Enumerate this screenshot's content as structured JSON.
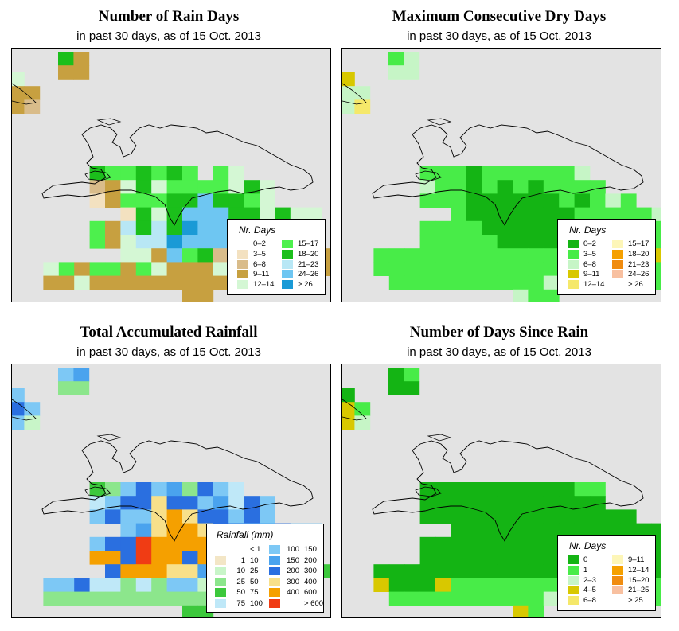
{
  "panels": [
    {
      "title": "Number of Rain Days",
      "subtitle": "in past 30 days, as of  15 Oct. 2013",
      "legend": {
        "title": "Nr. Days",
        "items": [
          {
            "label": "0–2",
            "color": "#ffffff"
          },
          {
            "label": "3–5",
            "color": "#f3e1c0"
          },
          {
            "label": "6–8",
            "color": "#d9bc8a"
          },
          {
            "label": "9–11",
            "color": "#c7a040"
          },
          {
            "label": "12–14",
            "color": "#d4f7d4"
          },
          {
            "label": "15–17",
            "color": "#4df04d"
          },
          {
            "label": "18–20",
            "color": "#1bbf1b"
          },
          {
            "label": "21–23",
            "color": "#b8e7f5"
          },
          {
            "label": "24–26",
            "color": "#6ec6f2"
          },
          {
            "label": "> 26",
            "color": "#1a9ad6"
          }
        ]
      }
    },
    {
      "title": "Maximum Consecutive Dry Days",
      "subtitle": "in past 30 days, as of  15 Oct. 2013",
      "legend": {
        "title": "Nr. Days",
        "items": [
          {
            "label": "0–2",
            "color": "#14b414"
          },
          {
            "label": "3–5",
            "color": "#48ec48"
          },
          {
            "label": "6–8",
            "color": "#c6f5c6"
          },
          {
            "label": "9–11",
            "color": "#d8c800"
          },
          {
            "label": "12–14",
            "color": "#f5e86a"
          },
          {
            "label": "15–17",
            "color": "#fdf6b8"
          },
          {
            "label": "18–20",
            "color": "#f5a000"
          },
          {
            "label": "21–23",
            "color": "#f08c10"
          },
          {
            "label": "24–26",
            "color": "#f8c0a0"
          },
          {
            "label": "> 26",
            "color": "#ffffff"
          }
        ]
      }
    },
    {
      "title": "Total Accumulated Rainfall",
      "subtitle": "in past 30 days, as of  15 Oct. 2013",
      "legend": {
        "title": "Rainfall (mm)",
        "items": [
          {
            "lo": "",
            "hi": "< 1",
            "color": "#ffffff"
          },
          {
            "lo": "1",
            "hi": "10",
            "color": "#f3e6c6"
          },
          {
            "lo": "10",
            "hi": "25",
            "color": "#c8f5c8"
          },
          {
            "lo": "25",
            "hi": "50",
            "color": "#8ce68c"
          },
          {
            "lo": "50",
            "hi": "75",
            "color": "#3cc83c"
          },
          {
            "lo": "75",
            "hi": "100",
            "color": "#bfe8f8"
          },
          {
            "lo": "100",
            "hi": "150",
            "color": "#7dc8f5"
          },
          {
            "lo": "150",
            "hi": "200",
            "color": "#4aa3ee"
          },
          {
            "lo": "200",
            "hi": "300",
            "color": "#2a6fe0"
          },
          {
            "lo": "300",
            "hi": "400",
            "color": "#f8e08a"
          },
          {
            "lo": "400",
            "hi": "600",
            "color": "#f5a000"
          },
          {
            "lo": "",
            "hi": "> 600",
            "color": "#f03c14"
          }
        ]
      }
    },
    {
      "title": "Number of Days Since Rain",
      "subtitle": "in past 30 days, as of  15 Oct. 2013",
      "legend": {
        "title": "Nr. Days",
        "items": [
          {
            "label": "0",
            "color": "#14b414"
          },
          {
            "label": "1",
            "color": "#48ec48"
          },
          {
            "label": "2–3",
            "color": "#c6f5c6"
          },
          {
            "label": "4–5",
            "color": "#d8c800"
          },
          {
            "label": "6–8",
            "color": "#f5e86a"
          },
          {
            "label": "9–11",
            "color": "#fdf6b8"
          },
          {
            "label": "12–14",
            "color": "#f5a000"
          },
          {
            "label": "15–20",
            "color": "#f08c10"
          },
          {
            "label": "21–25",
            "color": "#f8c0a0"
          },
          {
            "label": "> 25",
            "color": "#ffffff"
          }
        ]
      }
    }
  ]
}
